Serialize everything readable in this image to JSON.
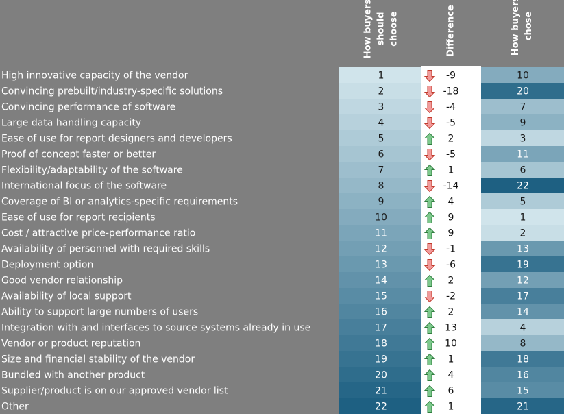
{
  "header": {
    "should_choose": [
      "How buyers",
      "should",
      "choose"
    ],
    "difference": [
      "Difference"
    ],
    "chose": [
      "How buyers",
      "chose"
    ]
  },
  "table": {
    "rows": [
      [
        "High innovative capacity of the vendor",
        1,
        -9,
        10
      ],
      [
        "Convincing prebuilt/industry-specific solutions",
        2,
        -18,
        20
      ],
      [
        "Convincing performance of software",
        3,
        -4,
        7
      ],
      [
        "Large data handling capacity",
        4,
        -5,
        9
      ],
      [
        "Ease of use for report designers and developers",
        5,
        2,
        3
      ],
      [
        "Proof of concept faster or better",
        6,
        -5,
        11
      ],
      [
        "Flexibility/adaptability of the software",
        7,
        1,
        6
      ],
      [
        "International focus of the software",
        8,
        -14,
        22
      ],
      [
        "Coverage of BI or analytics-specific requirements",
        9,
        4,
        5
      ],
      [
        "Ease of use for report recipients",
        10,
        9,
        1
      ],
      [
        "Cost / attractive price-performance ratio",
        11,
        9,
        2
      ],
      [
        "Availability of personnel with required skills",
        12,
        -1,
        13
      ],
      [
        "Deployment option",
        13,
        -6,
        19
      ],
      [
        "Good vendor relationship",
        14,
        2,
        12
      ],
      [
        "Availability of local support",
        15,
        -2,
        17
      ],
      [
        "Ability to support large numbers of users",
        16,
        2,
        14
      ],
      [
        "Integration with and interfaces to source systems already in use",
        17,
        13,
        4
      ],
      [
        "Vendor or product reputation",
        18,
        10,
        8
      ],
      [
        "Size and financial stability of the vendor",
        19,
        1,
        18
      ],
      [
        "Bundled with another product",
        20,
        4,
        16
      ],
      [
        "Supplier/product is on our approved vendor list",
        21,
        6,
        15
      ],
      [
        "Other",
        22,
        1,
        21
      ]
    ]
  }
}
